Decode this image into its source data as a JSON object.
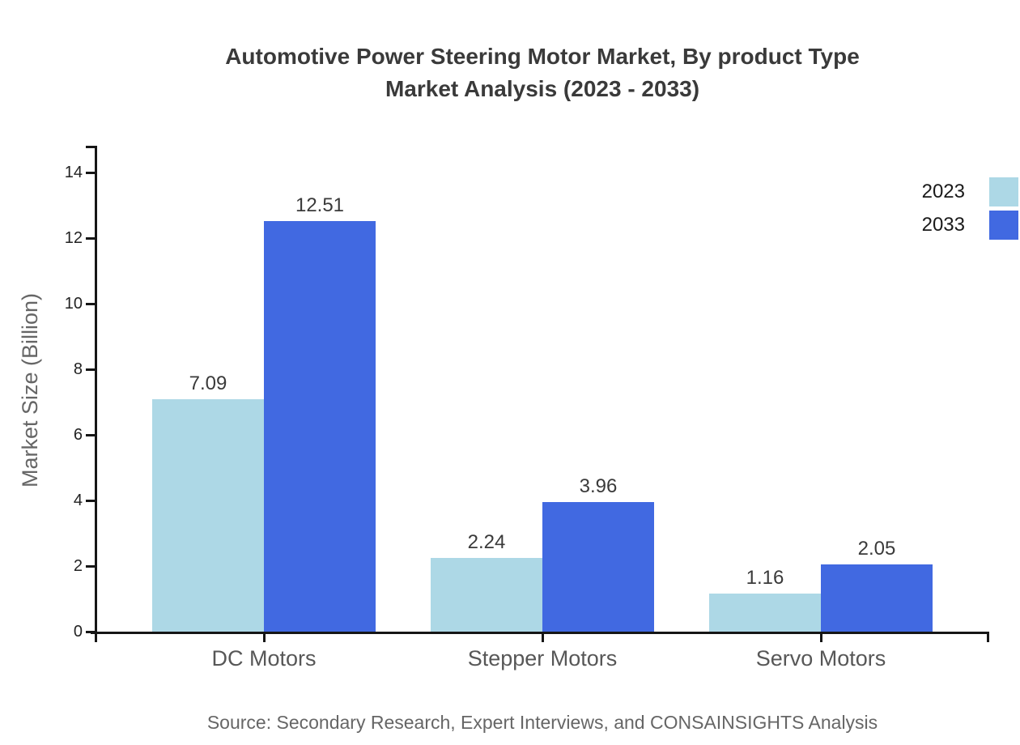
{
  "header": {
    "title_line1": "Automotive Power Steering Motor Market, By product Type",
    "title_line2": "Market Analysis (2023 - 2033)"
  },
  "source_note": "Source: Secondary Research, Expert Interviews, and CONSAINSIGHTS Analysis",
  "colors": {
    "series_2023": "#ADD8E6",
    "series_2033": "#4169E1",
    "axis": "#161616",
    "title_text": "#3a3a3a",
    "value_label_text": "#3a3a3a",
    "category_text": "#575757",
    "muted_text": "#666666"
  },
  "chart_data": {
    "type": "bar",
    "title": "Automotive Power Steering Motor Market, By product Type Market Analysis (2023 - 2033)",
    "categories": [
      "DC Motors",
      "Stepper Motors",
      "Servo Motors"
    ],
    "series": [
      {
        "name": "2023",
        "color": "#ADD8E6",
        "values": [
          7.09,
          2.24,
          1.16
        ]
      },
      {
        "name": "2033",
        "color": "#4169E1",
        "values": [
          12.51,
          3.96,
          2.05
        ]
      }
    ],
    "xlabel": "",
    "ylabel": "Market Size (Billion)",
    "yticks": [
      0,
      2,
      4,
      6,
      8,
      10,
      12,
      14
    ],
    "ylim": [
      0,
      14.8
    ],
    "grid": false,
    "legend_position": "top-right",
    "value_labels": true,
    "value_label_format": "2-decimals"
  }
}
